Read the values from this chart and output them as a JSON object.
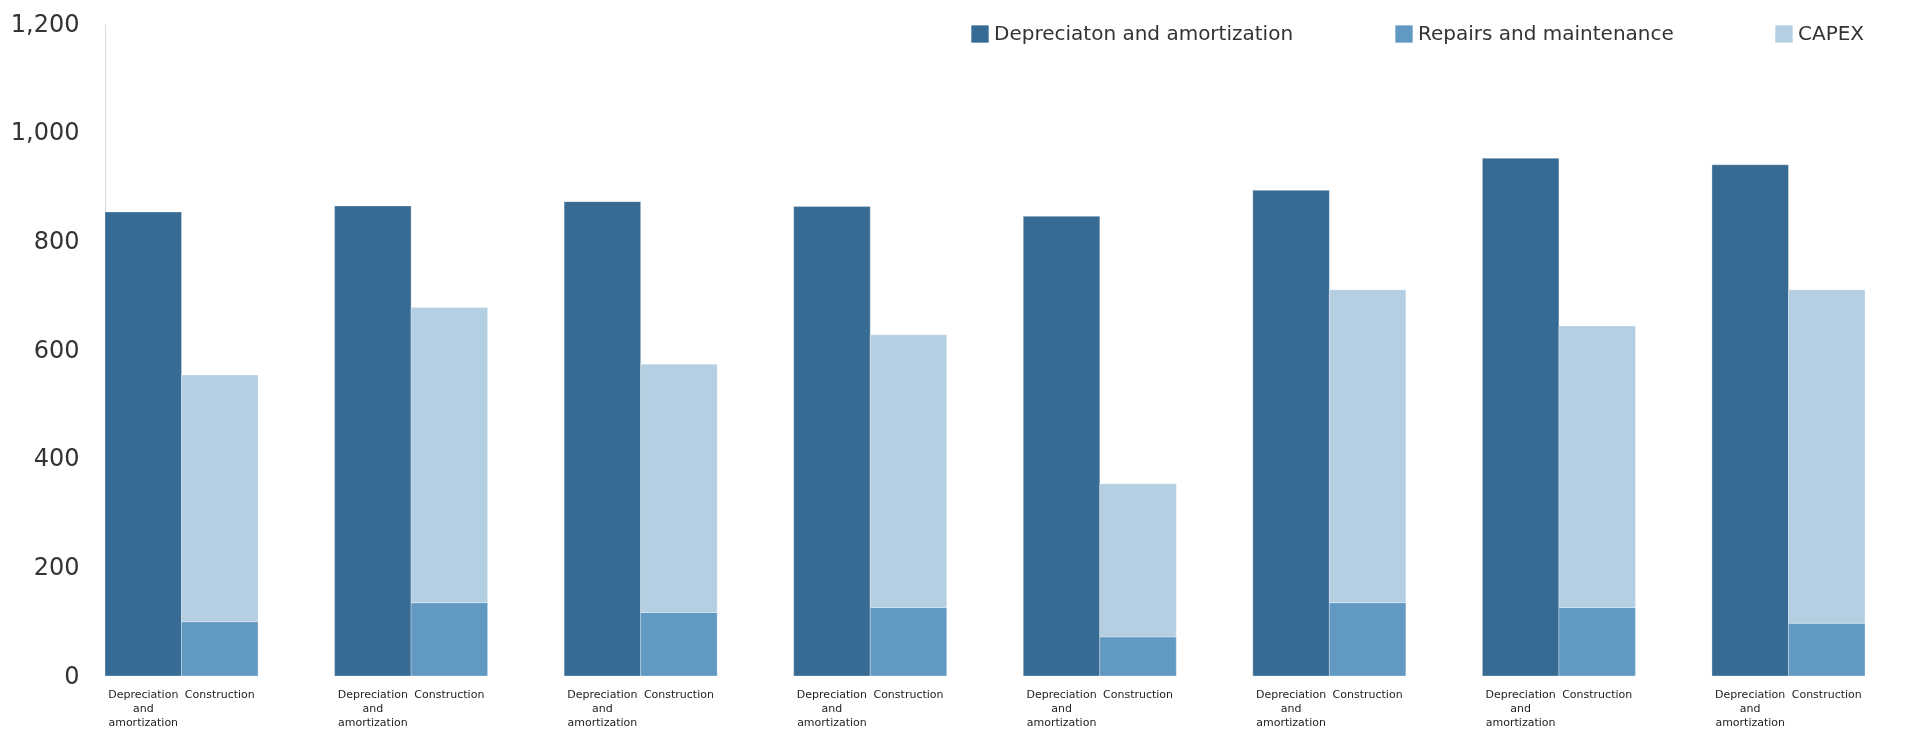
{
  "chart_data": {
    "type": "bar",
    "stacked": true,
    "categories": [
      "Depreciation and amortization",
      "Construction",
      "Depreciation and amortization",
      "Construction",
      "Depreciation and amortization",
      "Construction",
      "Depreciation and amortization",
      "Construction",
      "Depreciation and amortization",
      "Construction",
      "Depreciation and amortization",
      "Construction",
      "Depreciation and amortization",
      "Construction",
      "Depreciation and amortization",
      "Construction"
    ],
    "series": [
      {
        "name": "Depreciaton and amortization",
        "color": "#386b93",
        "values": [
          854,
          null,
          865,
          null,
          873,
          null,
          864,
          null,
          846,
          null,
          894,
          null,
          953,
          null,
          941,
          null
        ]
      },
      {
        "name": "Repairs and maintenance",
        "color": "#6199c3",
        "values": [
          null,
          100,
          null,
          135,
          null,
          117,
          null,
          126,
          null,
          72,
          null,
          135,
          null,
          126,
          null,
          97
        ]
      },
      {
        "name": "CAPEX",
        "color": "#b4cfe2",
        "values": [
          null,
          454,
          null,
          543,
          null,
          457,
          null,
          502,
          null,
          282,
          null,
          576,
          null,
          518,
          null,
          614
        ]
      }
    ],
    "ylim": [
      0,
      1200
    ],
    "yticks": [
      0,
      200,
      400,
      600,
      800,
      {
        "value": 1000,
        "label": "1,000"
      },
      {
        "value": 1200,
        "label": "1,200"
      }
    ],
    "legend": "top right"
  }
}
